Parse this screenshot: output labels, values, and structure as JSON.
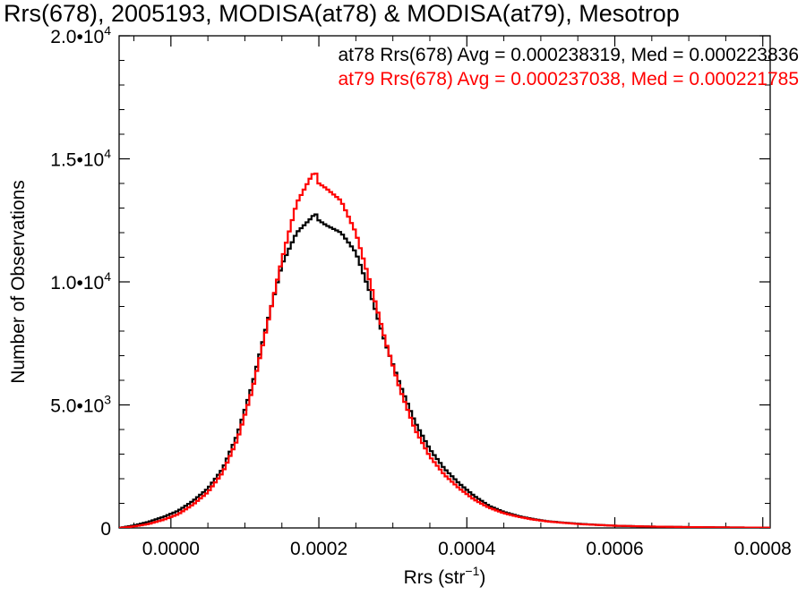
{
  "chart_data": {
    "type": "line",
    "title": "Rrs(678), 2005193, MODISA(at78) & MODISA(at79), Mesotrop",
    "xlabel": "Rrs (str",
    "xlabel_sup": "−1",
    "xlabel_close": ")",
    "ylabel": "Number of Observations",
    "xlim": [
      -7e-05,
      0.00081
    ],
    "ylim": [
      0,
      20000
    ],
    "x_ticks": [
      {
        "value": 0.0,
        "label": "0.0000"
      },
      {
        "value": 0.0002,
        "label": "0.0002"
      },
      {
        "value": 0.0004,
        "label": "0.0004"
      },
      {
        "value": 0.0006,
        "label": "0.0006"
      },
      {
        "value": 0.0008,
        "label": "0.0008"
      }
    ],
    "y_ticks": [
      {
        "value": 0,
        "label": "0",
        "sup": ""
      },
      {
        "value": 5000,
        "label": "5.0•10",
        "sup": "3"
      },
      {
        "value": 10000,
        "label": "1.0•10",
        "sup": "4"
      },
      {
        "value": 15000,
        "label": "1.5•10",
        "sup": "4"
      },
      {
        "value": 20000,
        "label": "2.0•10",
        "sup": "4"
      }
    ],
    "annotations": [
      {
        "text": "at78 Rrs(678) Avg = 0.000238319, Med = 0.000223836",
        "color": "#000000"
      },
      {
        "text": "at79 Rrs(678) Avg = 0.000237038, Med = 0.000221785",
        "color": "#ff0000"
      }
    ],
    "series": [
      {
        "name": "at78",
        "color": "#000000",
        "x": [
          -7e-05,
          -5e-05,
          -3e-05,
          -1e-05,
          1e-05,
          3e-05,
          5e-05,
          7e-05,
          9e-05,
          0.00011,
          0.00013,
          0.00015,
          0.00017,
          0.00019,
          0.000195,
          0.0002,
          0.00021,
          0.00023,
          0.00025,
          0.00027,
          0.00029,
          0.00031,
          0.00033,
          0.00035,
          0.00037,
          0.00039,
          0.00041,
          0.00043,
          0.00045,
          0.00047,
          0.00049,
          0.00051,
          0.00055,
          0.0006,
          0.00065,
          0.0007,
          0.00075,
          0.00081
        ],
        "y": [
          0,
          100,
          250,
          450,
          700,
          1100,
          1600,
          2400,
          3800,
          5800,
          8300,
          10700,
          12000,
          12600,
          12800,
          12500,
          12300,
          12000,
          11200,
          9500,
          7500,
          5800,
          4300,
          3200,
          2400,
          1800,
          1300,
          900,
          650,
          480,
          360,
          270,
          170,
          90,
          55,
          35,
          22,
          10
        ]
      },
      {
        "name": "at79",
        "color": "#ff0000",
        "x": [
          -7e-05,
          -5e-05,
          -3e-05,
          -1e-05,
          1e-05,
          3e-05,
          5e-05,
          7e-05,
          9e-05,
          0.00011,
          0.00013,
          0.00015,
          0.00017,
          0.00019,
          0.000195,
          0.0002,
          0.00021,
          0.00023,
          0.00025,
          0.00027,
          0.00029,
          0.00031,
          0.00033,
          0.00035,
          0.00037,
          0.00039,
          0.00041,
          0.00043,
          0.00045,
          0.00047,
          0.00049,
          0.00051,
          0.00055,
          0.0006,
          0.00065,
          0.0007,
          0.00075,
          0.00081
        ],
        "y": [
          0,
          60,
          160,
          330,
          560,
          950,
          1450,
          2250,
          3600,
          5600,
          8200,
          10900,
          13200,
          14300,
          14500,
          14000,
          13800,
          13300,
          12000,
          9900,
          7600,
          5600,
          4000,
          2900,
          2150,
          1600,
          1150,
          820,
          600,
          450,
          340,
          260,
          160,
          90,
          55,
          35,
          22,
          10
        ]
      }
    ]
  }
}
